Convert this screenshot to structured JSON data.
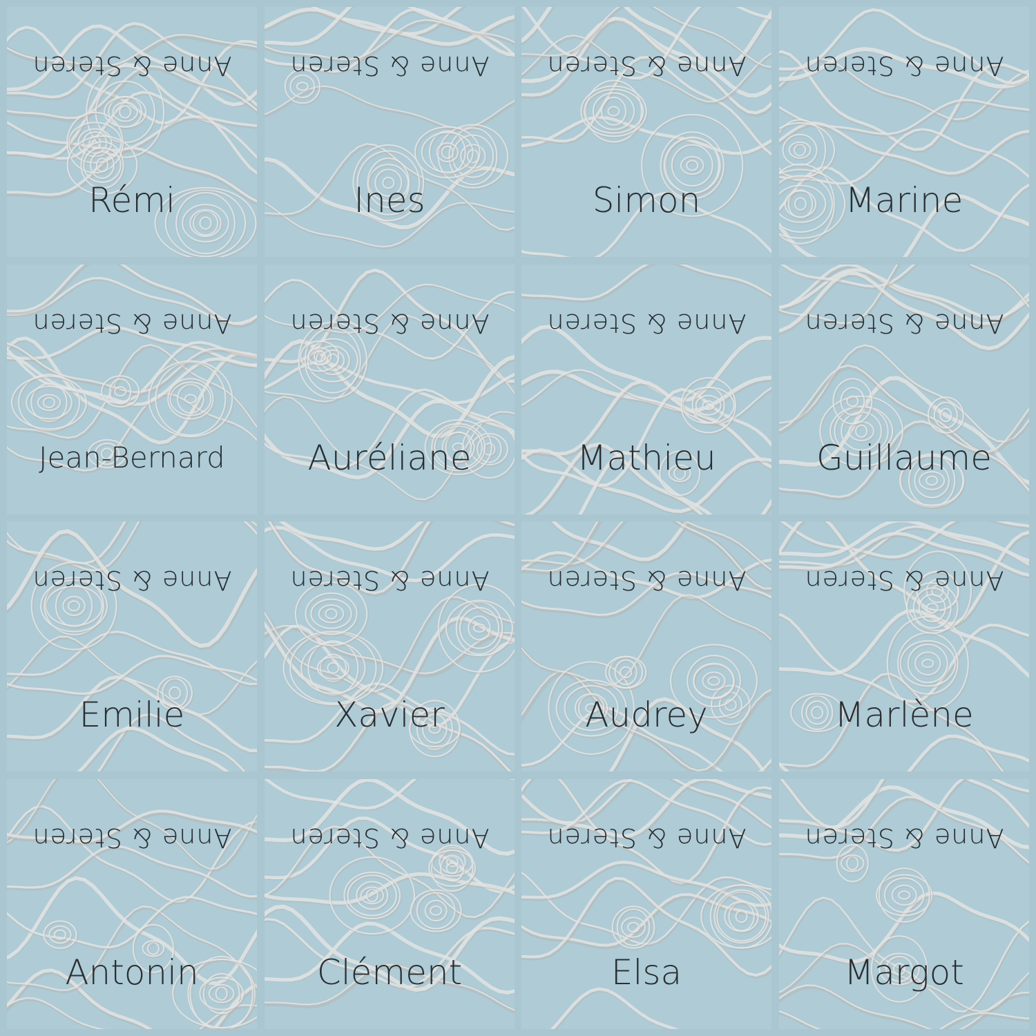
{
  "sheet": {
    "couple_label": "Anne & Steren",
    "guests": [
      "Rémi",
      "Ines",
      "Simon",
      "Marine",
      "Jean-Bernard",
      "Auréliane",
      "Mathieu",
      "Guillaume",
      "Emilie",
      "Xavier",
      "Audrey",
      "Marlène",
      "Antonin",
      "Clément",
      "Elsa",
      "Margot"
    ]
  },
  "colors": {
    "background": "#a9c6d1",
    "swirl": "#e4e6e6",
    "swirl_shadow": "#b8b4b0",
    "text": "#2a2e31"
  }
}
